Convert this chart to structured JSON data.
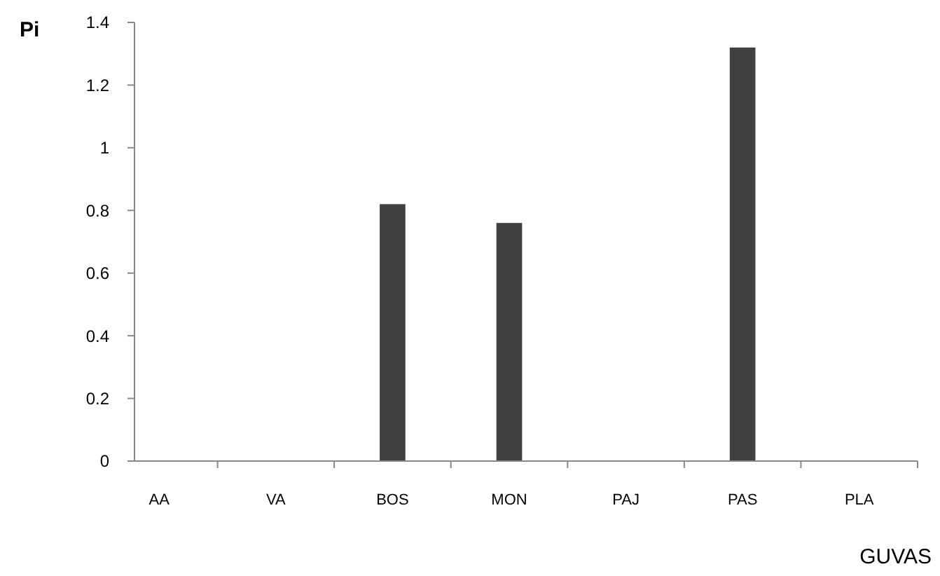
{
  "chart_data": {
    "type": "bar",
    "ylabel": "Pi",
    "xlabel": "GUVAS",
    "categories": [
      "AA",
      "VA",
      "BOS",
      "MON",
      "PAJ",
      "PAS",
      "PLA"
    ],
    "values": [
      0,
      0,
      0.82,
      0.76,
      0,
      1.32,
      0
    ],
    "color": "#404040",
    "ylim": [
      0,
      1.4
    ],
    "yticks": [
      0,
      0.2,
      0.4,
      0.6,
      0.8,
      1,
      1.2,
      1.4
    ],
    "grid": false
  }
}
